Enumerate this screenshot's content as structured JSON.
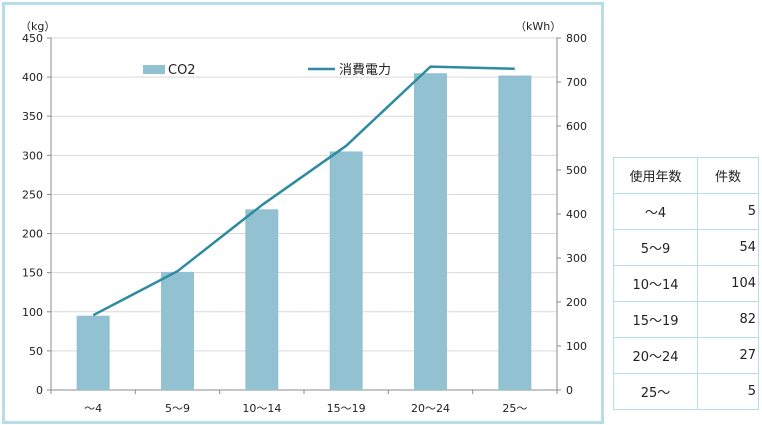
{
  "chart_data": {
    "type": "bar",
    "categories": [
      "～4",
      "5～9",
      "10～14",
      "15～19",
      "20～24",
      "25～"
    ],
    "series": [
      {
        "name": "CO2",
        "type": "bar",
        "axis": "left",
        "values": [
          95,
          151,
          231,
          305,
          405,
          402
        ]
      },
      {
        "name": "消費電力",
        "type": "line",
        "axis": "right",
        "values": [
          170,
          270,
          420,
          555,
          735,
          730
        ]
      }
    ],
    "left_axis": {
      "unit": "（kg）",
      "min": 0,
      "max": 450,
      "step": 50
    },
    "right_axis": {
      "unit": "（kWh）",
      "min": 0,
      "max": 800,
      "step": 100
    },
    "grid": true,
    "legend": "top",
    "colors": {
      "bar": "#92c1d2",
      "line": "#2e8ba0",
      "grid": "#d9d9d9",
      "axis": "#8c8c8c",
      "border": "#b7dde8"
    }
  },
  "table": {
    "headers": [
      "使用年数",
      "件数"
    ],
    "rows": [
      [
        "～4",
        "5"
      ],
      [
        "5～9",
        "54"
      ],
      [
        "10～14",
        "104"
      ],
      [
        "15～19",
        "82"
      ],
      [
        "20～24",
        "27"
      ],
      [
        "25～",
        "5"
      ]
    ]
  }
}
